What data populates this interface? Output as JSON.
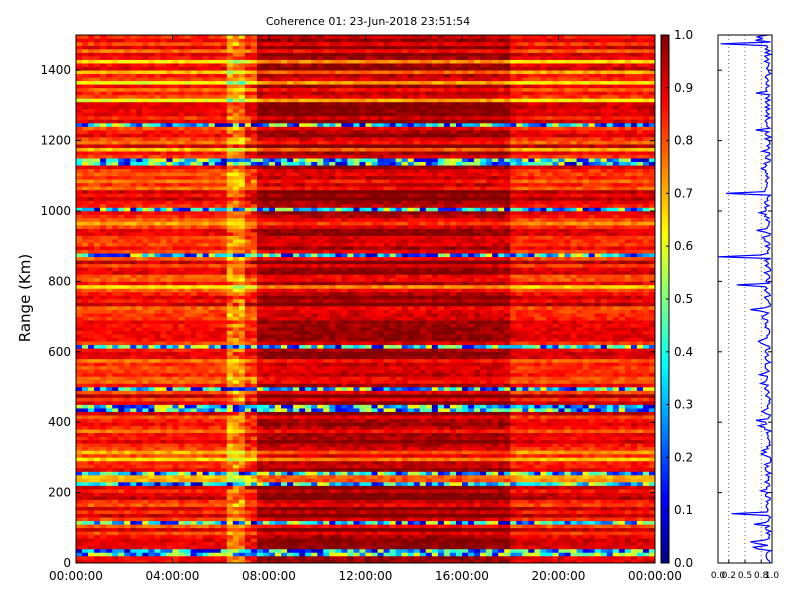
{
  "chart_data": {
    "type": "heatmap",
    "title": "Coherence 01: 23-Jun-2018 23:51:54",
    "ylabel": "Range (Km)",
    "xlabel": "",
    "x_range": [
      "00:00:00",
      "24:00:00"
    ],
    "x_ticks": [
      "00:00:00",
      "04:00:00",
      "08:00:00",
      "12:00:00",
      "16:00:00",
      "20:00:00",
      "00:00:00"
    ],
    "y_range": [
      0,
      1500
    ],
    "y_ticks": [
      "0",
      "200",
      "400",
      "600",
      "800",
      "1000",
      "1200",
      "1400"
    ],
    "colorbar": {
      "colormap": "jet",
      "range": [
        0.0,
        1.0
      ],
      "ticks": [
        "0.0",
        "0.1",
        "0.2",
        "0.3",
        "0.4",
        "0.5",
        "0.6",
        "0.7",
        "0.8",
        "0.9",
        "1.0"
      ]
    },
    "low_coherence_ranges_km": [
      30,
      115,
      225,
      255,
      440,
      495,
      612,
      875,
      1005,
      1140,
      1243
    ],
    "coherence_by_period": {
      "00:00-07:00": 0.85,
      "07:00-18:00": 0.95,
      "18:00-24:00": 0.87
    },
    "profile_plot": {
      "type": "line",
      "x_ticks": [
        "0.0",
        "0.2",
        "0.5",
        "0.8",
        "1.0"
      ],
      "xlim": [
        0,
        1.0
      ],
      "series_color": "#0000ff",
      "dips": [
        {
          "range_km": 1475,
          "value": 0.05
        },
        {
          "range_km": 1230,
          "value": 0.7
        },
        {
          "range_km": 1050,
          "value": 0.15
        },
        {
          "range_km": 870,
          "value": 0.0
        },
        {
          "range_km": 790,
          "value": 0.35
        },
        {
          "range_km": 720,
          "value": 0.6
        },
        {
          "range_km": 630,
          "value": 0.75
        },
        {
          "range_km": 140,
          "value": 0.25
        },
        {
          "range_km": 60,
          "value": 0.6
        }
      ]
    }
  }
}
